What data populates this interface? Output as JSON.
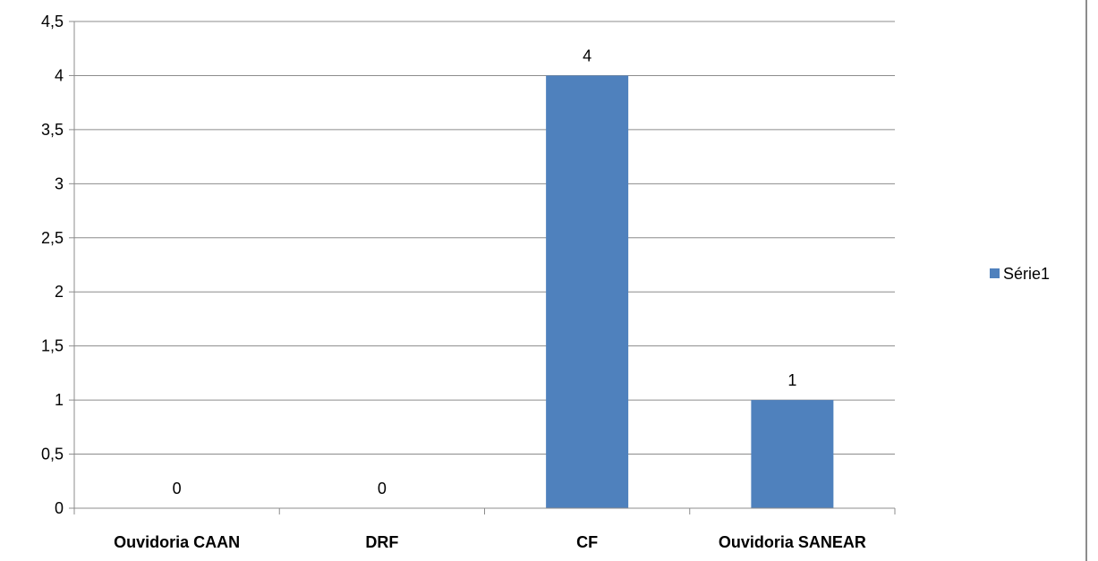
{
  "chart_data": {
    "type": "bar",
    "categories": [
      "Ouvidoria CAAN",
      "DRF",
      "CF",
      "Ouvidoria SANEAR"
    ],
    "series": [
      {
        "name": "Série1",
        "values": [
          0,
          0,
          4,
          1
        ],
        "color": "#4F81BD"
      }
    ],
    "ylim": [
      0,
      4.5
    ],
    "yticks": [
      "0",
      "0,5",
      "1",
      "1,5",
      "2",
      "2,5",
      "3",
      "3,5",
      "4",
      "4,5"
    ],
    "ytick_values": [
      0,
      0.5,
      1,
      1.5,
      2,
      2.5,
      3,
      3.5,
      4,
      4.5
    ],
    "data_labels": [
      "0",
      "0",
      "4",
      "1"
    ],
    "grid": true,
    "legend": "right",
    "title": "",
    "xlabel": "",
    "ylabel": ""
  }
}
